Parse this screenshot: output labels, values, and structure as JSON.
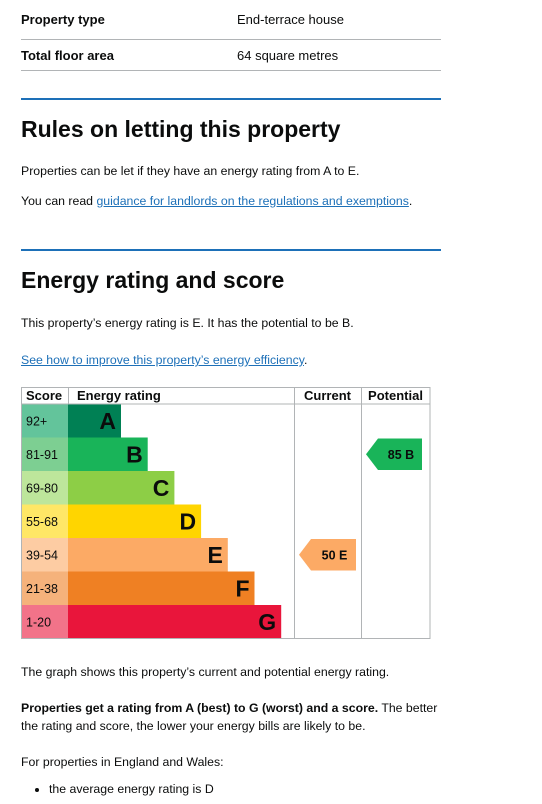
{
  "summary": [
    {
      "key": "Property type",
      "value": "End-terrace house"
    },
    {
      "key": "Total floor area",
      "value": "64 square metres"
    }
  ],
  "letting": {
    "heading": "Rules on letting this property",
    "para1": "Properties can be let if they have an energy rating from A to E.",
    "para2_prefix": "You can read ",
    "para2_link": "guidance for landlords on the regulations and exemptions",
    "para2_suffix": "."
  },
  "energy": {
    "heading": "Energy rating and score",
    "intro": "This property’s energy rating is E. It has the potential to be B.",
    "improve_link": "See how to improve this property’s energy efficiency",
    "improve_suffix": ".",
    "graph_caption": "The graph shows this property’s current and potential energy rating.",
    "scale_bold": "Properties get a rating from A (best) to G (worst) and a score.",
    "scale_rest": " The better the rating and score, the lower your energy bills are likely to be.",
    "england_wales": "For properties in England and Wales:",
    "bullets": [
      "the average energy rating is D"
    ]
  },
  "chart_data": {
    "type": "bar",
    "headers": {
      "score": "Score",
      "rating": "Energy rating",
      "current": "Current",
      "potential": "Potential"
    },
    "bands": [
      {
        "score": "92+",
        "letter": "A",
        "color": "#008054",
        "score_bg": "#63c49b"
      },
      {
        "score": "81-91",
        "letter": "B",
        "color": "#19b459",
        "score_bg": "#7dcf92"
      },
      {
        "score": "69-80",
        "letter": "C",
        "color": "#8dce46",
        "score_bg": "#bde69b"
      },
      {
        "score": "55-68",
        "letter": "D",
        "color": "#ffd500",
        "score_bg": "#ffe766"
      },
      {
        "score": "39-54",
        "letter": "E",
        "color": "#fcaa65",
        "score_bg": "#fdcca3"
      },
      {
        "score": "21-38",
        "letter": "F",
        "color": "#ef8023",
        "score_bg": "#f5b27b"
      },
      {
        "score": "1-20",
        "letter": "G",
        "color": "#e9153b",
        "score_bg": "#f27389"
      }
    ],
    "current": {
      "value": 50,
      "band": "E",
      "label": "50 E",
      "color": "#fcaa65"
    },
    "potential": {
      "value": 85,
      "band": "B",
      "label": "85 B",
      "color": "#19b459"
    }
  }
}
